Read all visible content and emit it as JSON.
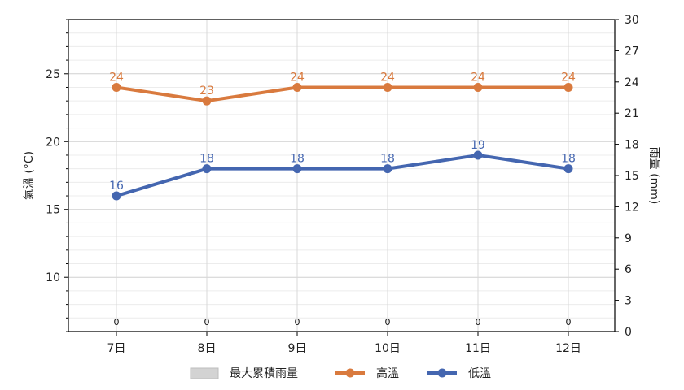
{
  "chart_data": {
    "type": "line",
    "categories": [
      "7日",
      "8日",
      "9日",
      "10日",
      "11日",
      "12日"
    ],
    "y_left": {
      "label": "氣溫 (°C)",
      "range": [
        6,
        29
      ],
      "ticks": [
        10,
        15,
        20,
        25
      ]
    },
    "y_right": {
      "label": "雨量 (mm)",
      "range": [
        0,
        30
      ],
      "ticks": [
        0,
        3,
        6,
        9,
        12,
        15,
        18,
        21,
        24,
        27,
        30
      ]
    },
    "series": [
      {
        "name": "最大累積雨量",
        "type": "bar",
        "axis": "right",
        "color": "#d3d3d3",
        "values": [
          0,
          0,
          0,
          0,
          0,
          0
        ],
        "labels": [
          "0",
          "0",
          "0",
          "0",
          "0",
          "0"
        ]
      },
      {
        "name": "高溫",
        "type": "line",
        "axis": "left",
        "color": "#d97a3e",
        "values": [
          24,
          23,
          24,
          24,
          24,
          24
        ],
        "labels": [
          "24",
          "23",
          "24",
          "24",
          "24",
          "24"
        ]
      },
      {
        "name": "低溫",
        "type": "line",
        "axis": "left",
        "color": "#4466b0",
        "values": [
          16,
          18,
          18,
          18,
          19,
          18
        ],
        "labels": [
          "16",
          "18",
          "18",
          "18",
          "19",
          "18"
        ]
      }
    ],
    "grid": true,
    "legend": "bottom-center"
  }
}
